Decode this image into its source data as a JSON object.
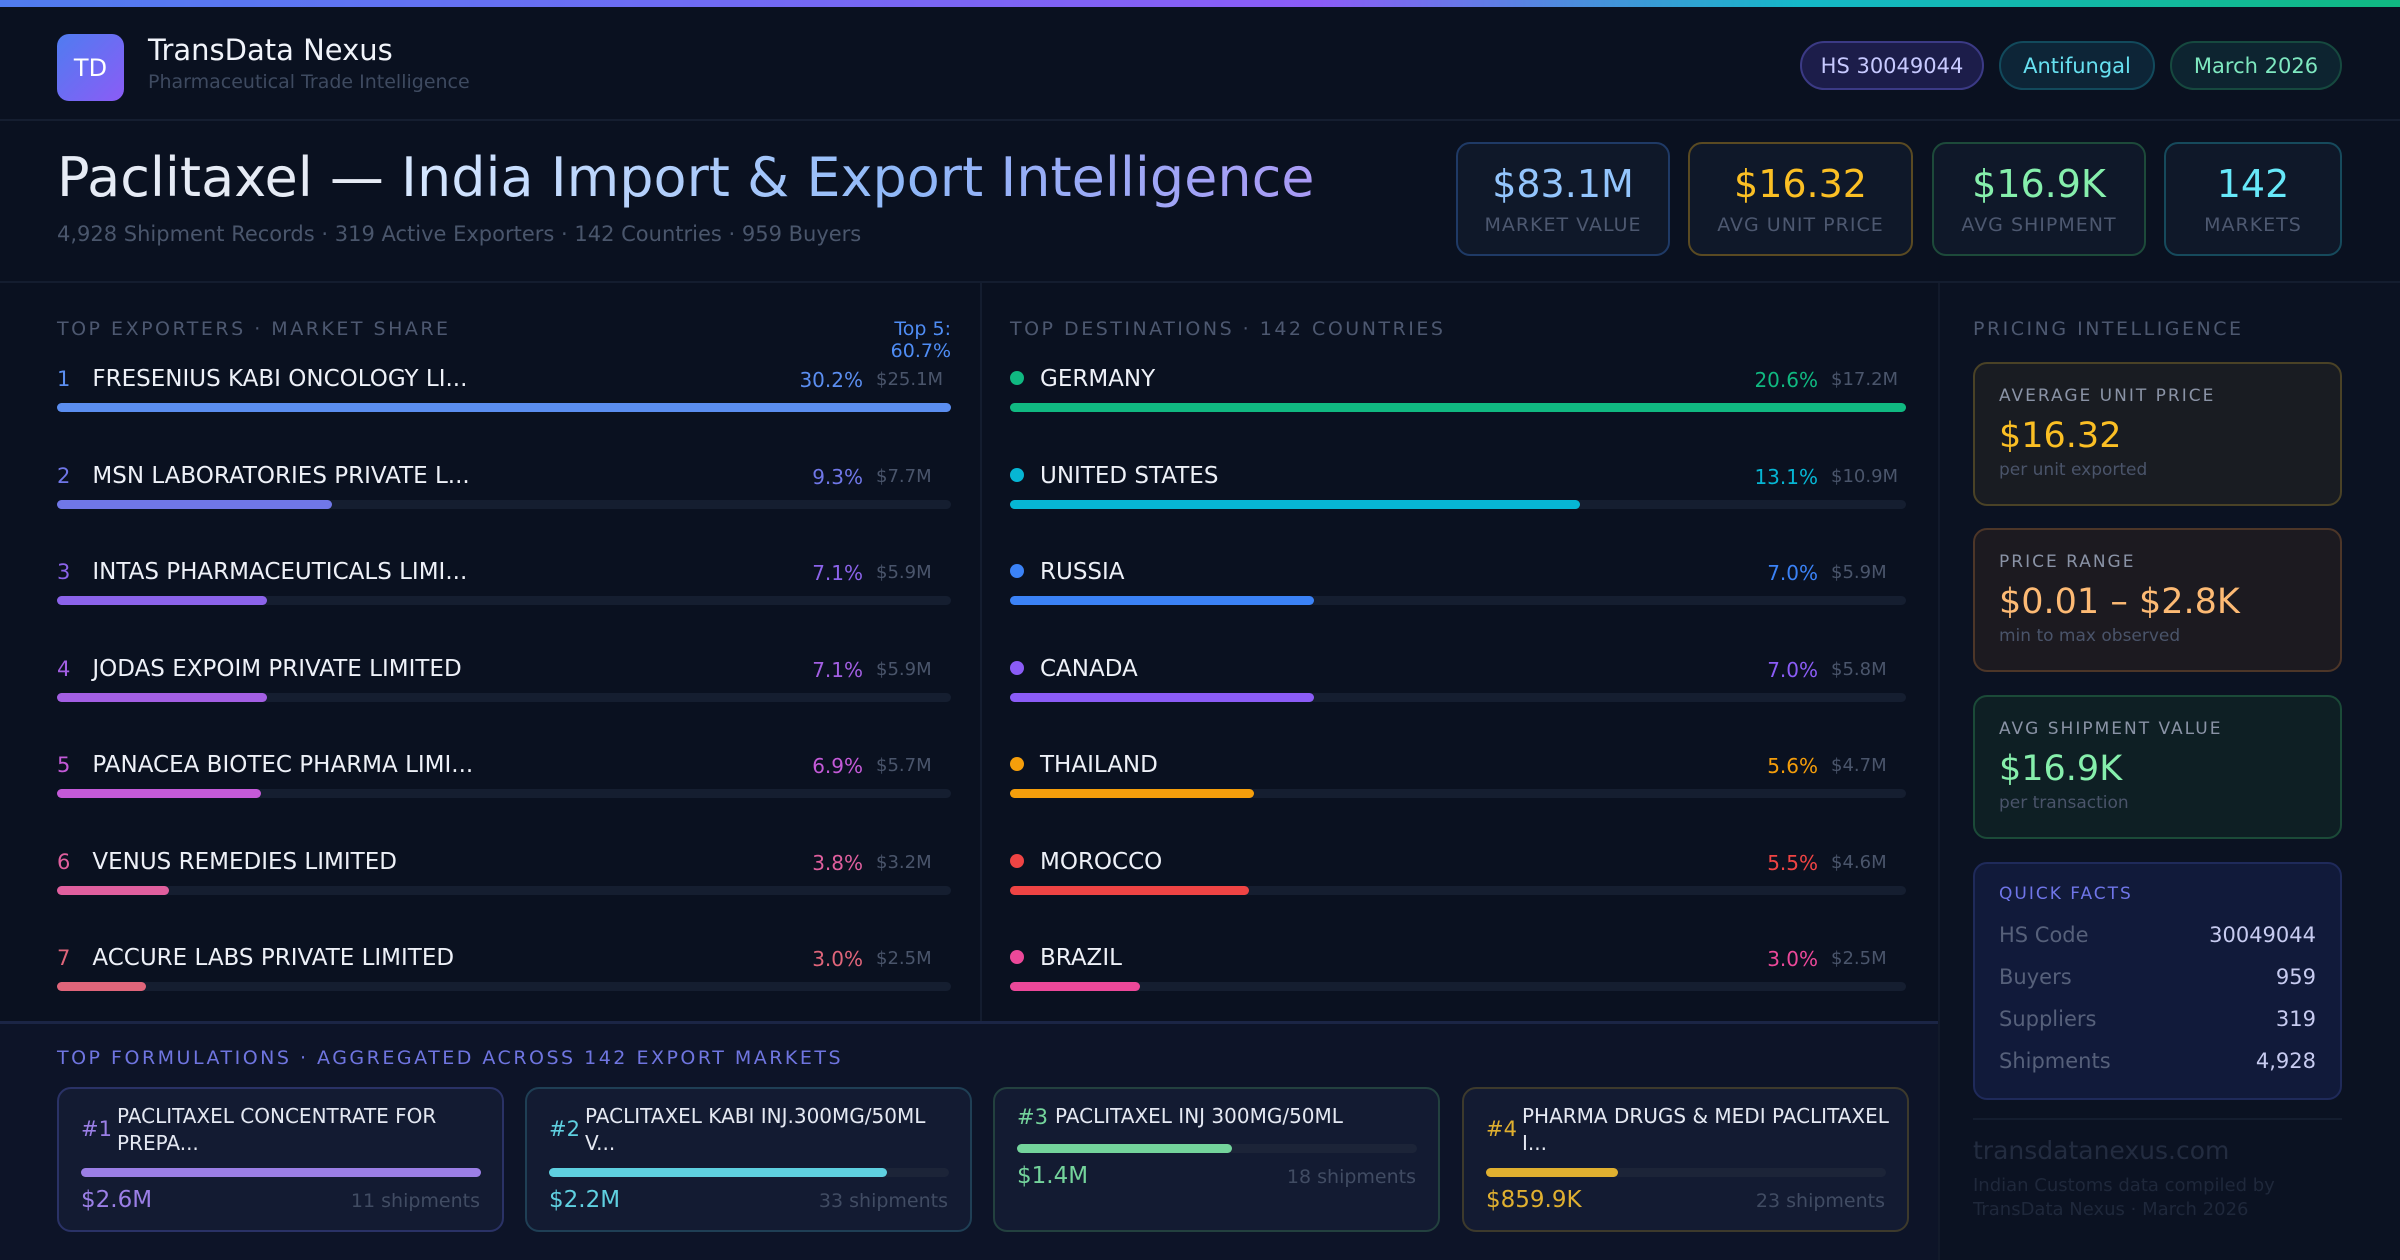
{
  "header": {
    "logo_text": "TD",
    "brand": "TransData Nexus",
    "tagline": "Pharmaceutical Trade Intelligence",
    "pills": {
      "hs": "HS 30049044",
      "category": "Antifungal",
      "date": "March 2026"
    }
  },
  "hero": {
    "title_product": "Paclitaxel — ",
    "title_rest": "India Import & Export Intelligence",
    "subtitle": "4,928 Shipment Records · 319 Active Exporters · 142 Countries · 959 Buyers"
  },
  "kpis": [
    {
      "value": "$83.1M",
      "label": "MARKET VALUE",
      "color": "#93c5fd",
      "border": "#1f3a66"
    },
    {
      "value": "$16.32",
      "label": "AVG UNIT PRICE",
      "color": "#fbbf24",
      "border": "#5a4a22"
    },
    {
      "value": "$16.9K",
      "label": "AVG SHIPMENT",
      "color": "#86efac",
      "border": "#1d4a3a"
    },
    {
      "value": "142",
      "label": "MARKETS",
      "color": "#67e8f9",
      "border": "#164a5c"
    }
  ],
  "exporters": {
    "heading": "TOP EXPORTERS · MARKET SHARE",
    "top_summary": "Top 5: 60.7%",
    "items": [
      {
        "rank": "1",
        "name": "FRESENIUS KABI ONCOLOGY LI...",
        "pct": "30.2%",
        "share": 30.2,
        "value": "$25.1M",
        "color": "#5b8ef0"
      },
      {
        "rank": "2",
        "name": "MSN LABORATORIES PRIVATE L...",
        "pct": "9.3%",
        "share": 9.3,
        "value": "$7.7M",
        "color": "#7077e8"
      },
      {
        "rank": "3",
        "name": "INTAS PHARMACEUTICALS LIMI...",
        "pct": "7.1%",
        "share": 7.1,
        "value": "$5.9M",
        "color": "#8b63ea"
      },
      {
        "rank": "4",
        "name": "JODAS EXPOIM PRIVATE LIMITED",
        "pct": "7.1%",
        "share": 7.1,
        "value": "$5.9M",
        "color": "#a35fe3"
      },
      {
        "rank": "5",
        "name": "PANACEA BIOTEC PHARMA LIMI...",
        "pct": "6.9%",
        "share": 6.9,
        "value": "$5.7M",
        "color": "#c45ad8"
      },
      {
        "rank": "6",
        "name": "VENUS REMEDIES LIMITED",
        "pct": "3.8%",
        "share": 3.8,
        "value": "$3.2M",
        "color": "#e05f9e"
      },
      {
        "rank": "7",
        "name": "ACCURE LABS PRIVATE LIMITED",
        "pct": "3.0%",
        "share": 3.0,
        "value": "$2.5M",
        "color": "#e0657a"
      }
    ]
  },
  "destinations": {
    "heading": "TOP DESTINATIONS · 142 COUNTRIES",
    "items": [
      {
        "name": "GERMANY",
        "pct": "20.6%",
        "share": 20.6,
        "value": "$17.2M",
        "color": "#10b981"
      },
      {
        "name": "UNITED STATES",
        "pct": "13.1%",
        "share": 13.1,
        "value": "$10.9M",
        "color": "#06b6d4"
      },
      {
        "name": "RUSSIA",
        "pct": "7.0%",
        "share": 7.0,
        "value": "$5.9M",
        "color": "#3b82f6"
      },
      {
        "name": "CANADA",
        "pct": "7.0%",
        "share": 7.0,
        "value": "$5.8M",
        "color": "#8b5cf6"
      },
      {
        "name": "THAILAND",
        "pct": "5.6%",
        "share": 5.6,
        "value": "$4.7M",
        "color": "#f59e0b"
      },
      {
        "name": "MOROCCO",
        "pct": "5.5%",
        "share": 5.5,
        "value": "$4.6M",
        "color": "#ef4444"
      },
      {
        "name": "BRAZIL",
        "pct": "3.0%",
        "share": 3.0,
        "value": "$2.5M",
        "color": "#ec4899"
      }
    ]
  },
  "formulations": {
    "heading": "TOP FORMULATIONS · AGGREGATED ACROSS 142 EXPORT MARKETS",
    "items": [
      {
        "rank": "#1",
        "name": "PACLITAXEL CONCENTRATE FOR PREPA...",
        "value": "$2.6M",
        "amount": 2.6,
        "shipments": "11 shipments",
        "color": "#9b7fe6",
        "border": "#2a3266"
      },
      {
        "rank": "#2",
        "name": "PACLITAXEL KABI INJ.300MG/50ML V...",
        "value": "$2.2M",
        "amount": 2.2,
        "shipments": "33 shipments",
        "color": "#5fd0e0",
        "border": "#1f3f55"
      },
      {
        "rank": "#3",
        "name": "PACLITAXEL INJ 300MG/50ML",
        "value": "$1.4M",
        "amount": 1.4,
        "shipments": "18 shipments",
        "color": "#74d49c",
        "border": "#23413f"
      },
      {
        "rank": "#4",
        "name": "PHARMA DRUGS & MEDI PACLITAXEL I...",
        "value": "$859.9K",
        "amount": 0.8599,
        "shipments": "23 shipments",
        "color": "#e0b030",
        "border": "#3d3a2c"
      }
    ]
  },
  "pricing": {
    "heading": "PRICING INTELLIGENCE",
    "cards": [
      {
        "label": "AVERAGE UNIT PRICE",
        "value": "$16.32",
        "sub": "per unit exported",
        "color": "#fbbf24",
        "bg": "#191c22",
        "border": "#4a4226"
      },
      {
        "label": "PRICE RANGE",
        "value": "$0.01 – $2.8K",
        "sub": "min to max observed",
        "color": "#fdba74",
        "bg": "#1c1a20",
        "border": "#4d3628"
      },
      {
        "label": "AVG SHIPMENT VALUE",
        "value": "$16.9K",
        "sub": "per transaction",
        "color": "#86efac",
        "bg": "#0e1f24",
        "border": "#1b4a38"
      }
    ],
    "quick_facts": {
      "heading": "QUICK FACTS",
      "rows": [
        {
          "key": "HS Code",
          "value": "30049044"
        },
        {
          "key": "Buyers",
          "value": "959"
        },
        {
          "key": "Suppliers",
          "value": "319"
        },
        {
          "key": "Shipments",
          "value": "4,928"
        }
      ]
    }
  },
  "footer": {
    "site": "transdatanexus.com",
    "note": "Indian Customs data compiled by TransData Nexus · March 2026"
  }
}
